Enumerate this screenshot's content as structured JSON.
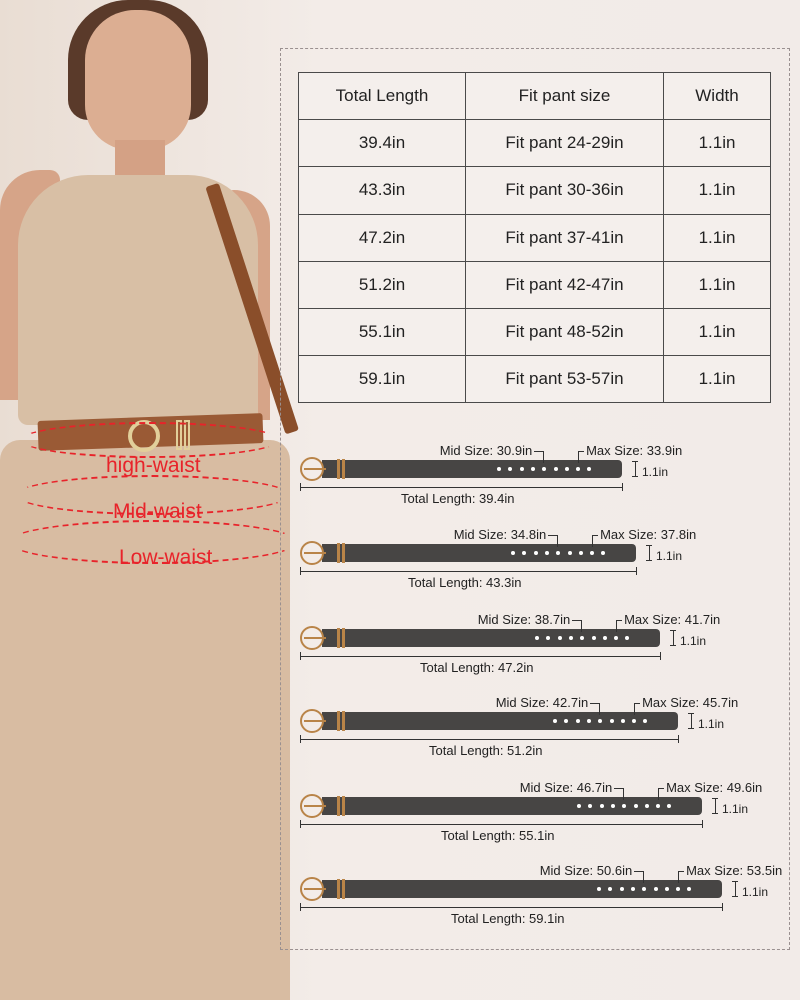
{
  "waist_labels": [
    "high-waist",
    "Mid-waist",
    "Low-waist"
  ],
  "table": {
    "headers": [
      "Total Length",
      "Fit pant size",
      "Width"
    ],
    "rows": [
      [
        "39.4in",
        "Fit pant 24-29in",
        "1.1in"
      ],
      [
        "43.3in",
        "Fit pant 30-36in",
        "1.1in"
      ],
      [
        "47.2in",
        "Fit pant 37-41in",
        "1.1in"
      ],
      [
        "51.2in",
        "Fit pant 42-47in",
        "1.1in"
      ],
      [
        "55.1in",
        "Fit pant 48-52in",
        "1.1in"
      ],
      [
        "59.1in",
        "Fit pant 53-57in",
        "1.1in"
      ]
    ]
  },
  "belts": [
    {
      "mid": "Mid Size: 30.9in",
      "max": "Max Size: 33.9in",
      "width": "1.1in",
      "total": "Total Length: 39.4in"
    },
    {
      "mid": "Mid Size: 34.8in",
      "max": "Max Size: 37.8in",
      "width": "1.1in",
      "total": "Total Length: 43.3in"
    },
    {
      "mid": "Mid Size: 38.7in",
      "max": "Max Size: 41.7in",
      "width": "1.1in",
      "total": "Total Length: 47.2in"
    },
    {
      "mid": "Mid Size: 42.7in",
      "max": "Max Size: 45.7in",
      "width": "1.1in",
      "total": "Total Length: 51.2in"
    },
    {
      "mid": "Mid Size: 46.7in",
      "max": "Max Size: 49.6in",
      "width": "1.1in",
      "total": "Total Length: 55.1in"
    },
    {
      "mid": "Mid Size: 50.6in",
      "max": "Max Size: 53.5in",
      "width": "1.1in",
      "total": "Total Length: 59.1in"
    }
  ],
  "colors": {
    "belt": "#474544",
    "buckle": "#b98448",
    "waist_label": "#e8232a"
  }
}
